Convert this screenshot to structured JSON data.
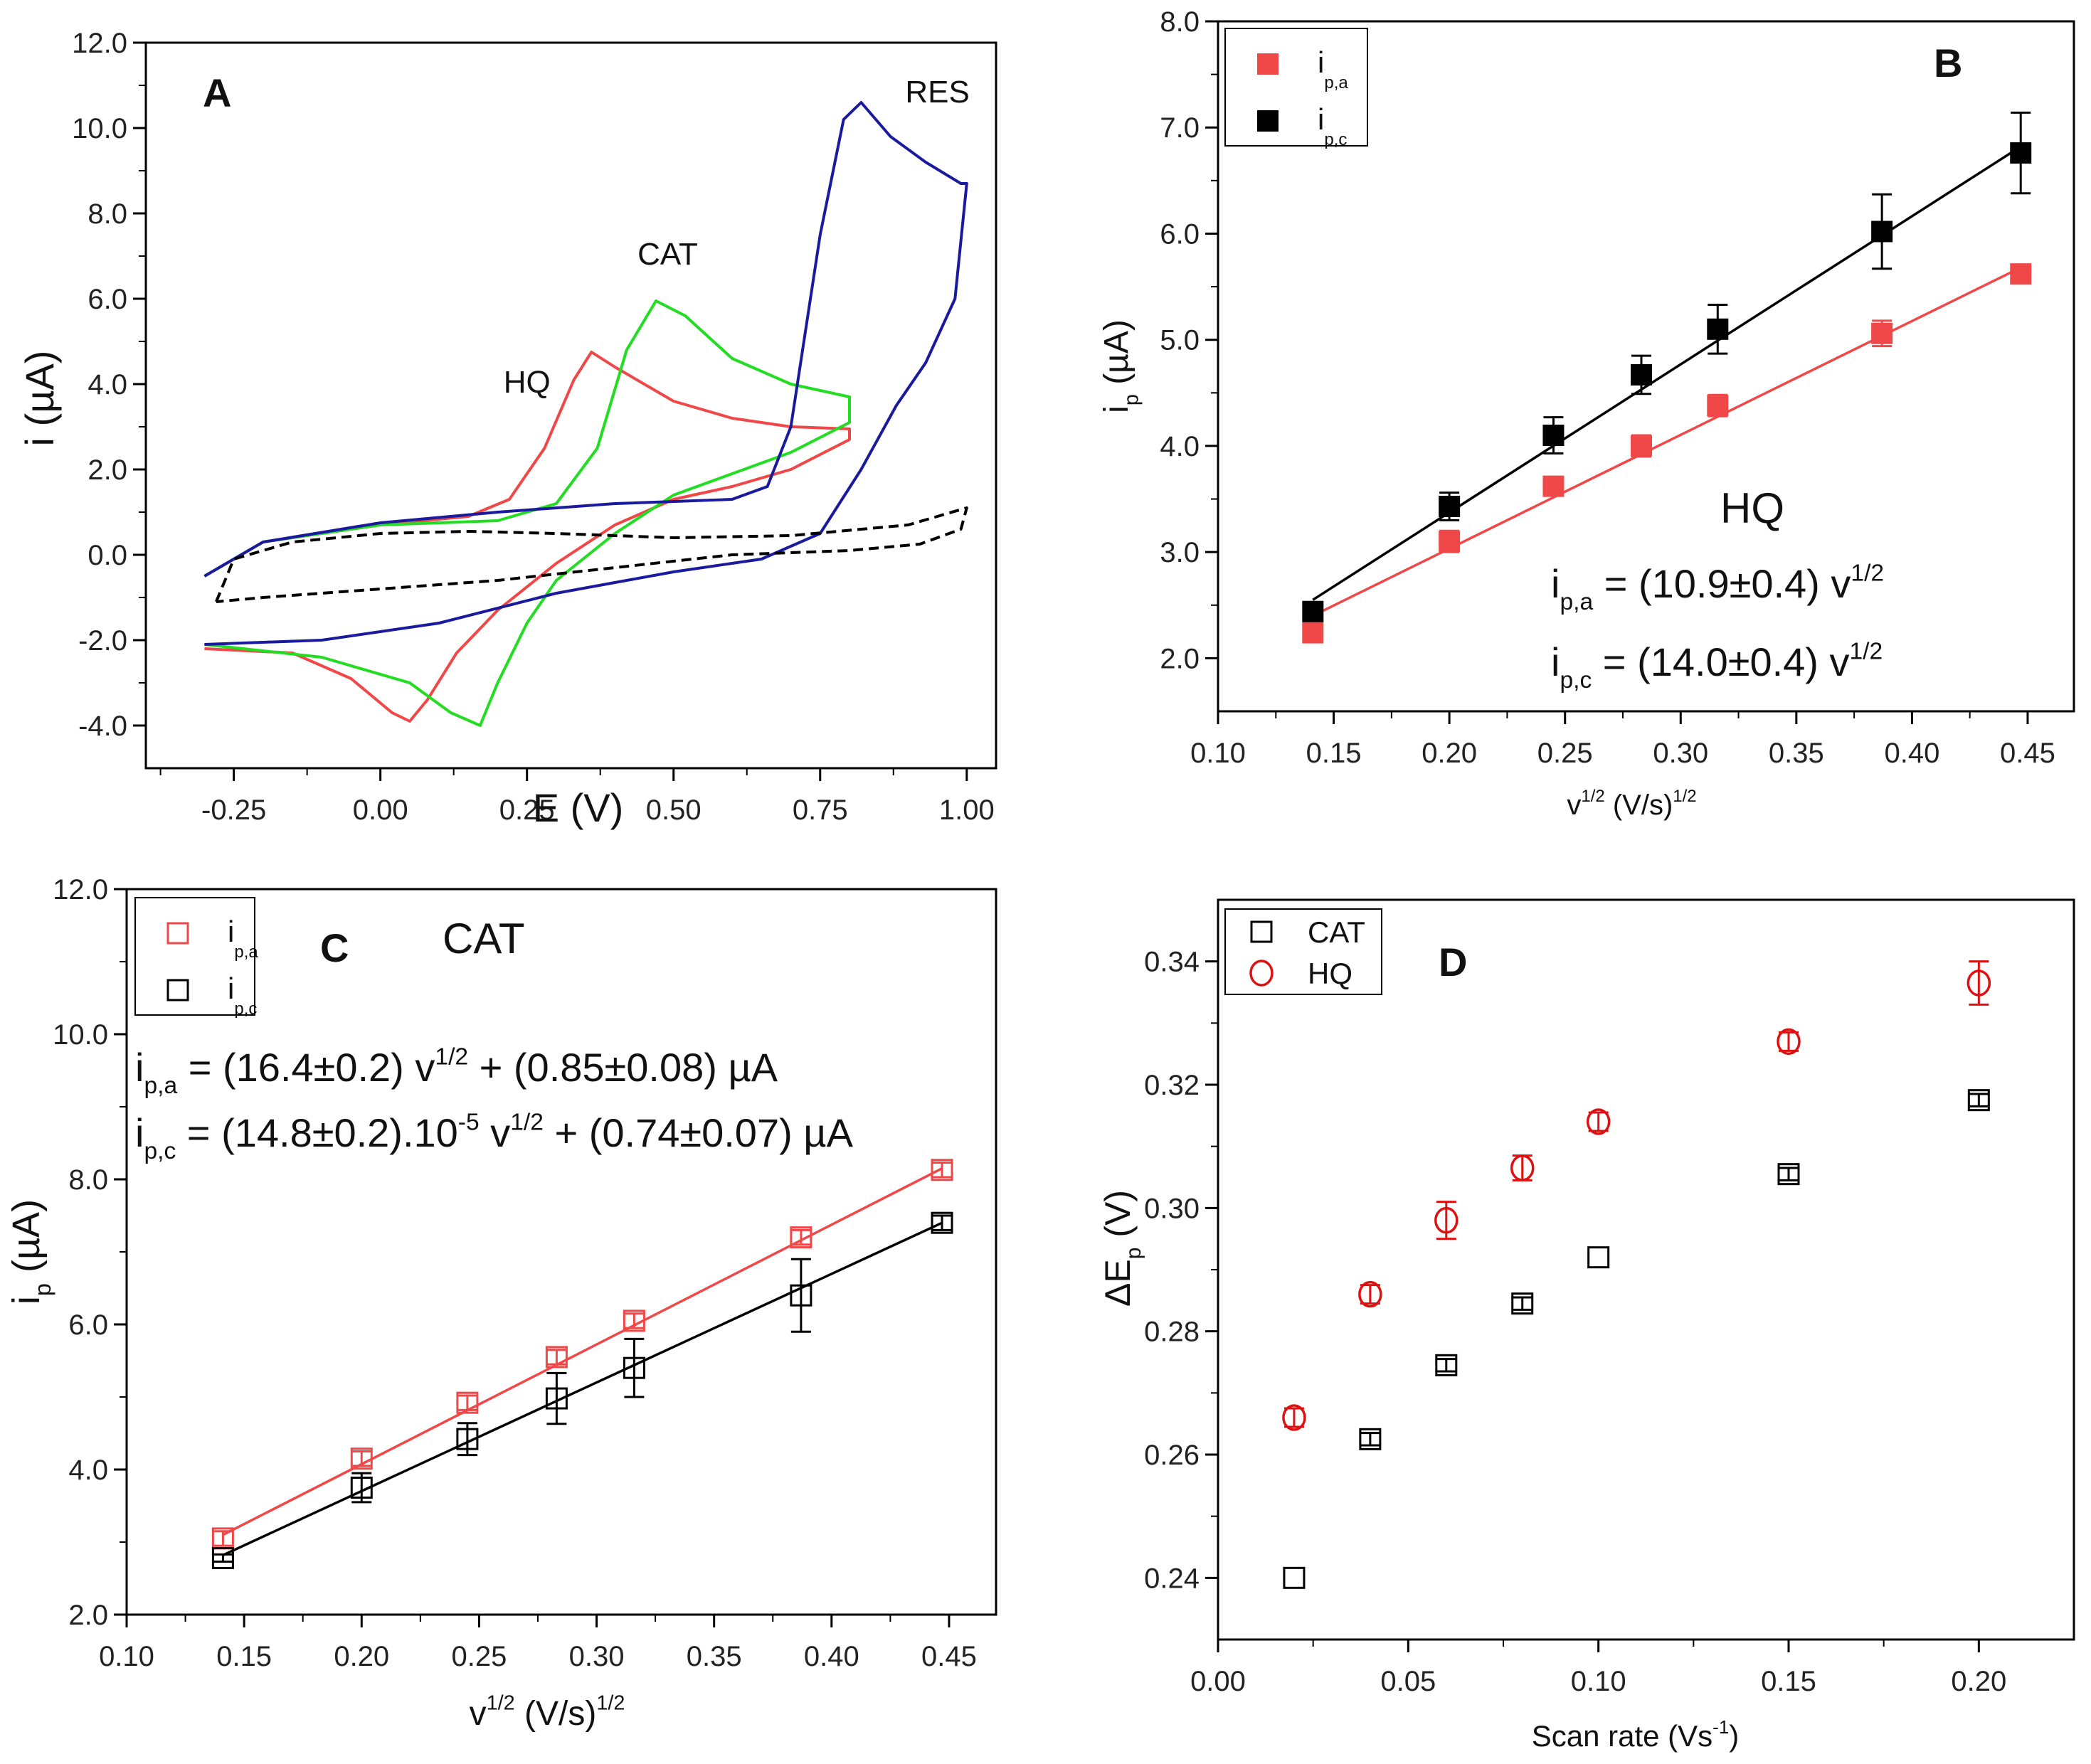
{
  "chart_data": [
    {
      "id": "A",
      "type": "line",
      "panel_label": "A",
      "xlabel": "E (V)",
      "ylabel": "i (µA)",
      "xlim": [
        -0.4,
        1.05
      ],
      "ylim": [
        -5.0,
        12.0
      ],
      "xticks": [
        "-0.25",
        "0.00",
        "0.25",
        "0.50",
        "0.75",
        "1.00"
      ],
      "yticks": [
        "-4.0",
        "-2.0",
        "0.0",
        "2.0",
        "4.0",
        "6.0",
        "8.0",
        "10.0",
        "12.0"
      ],
      "colors": {
        "HQ": "#f04848",
        "CAT": "#22dd22",
        "RES": "#1a1a9e",
        "blank": "#000000"
      },
      "annotations": [
        {
          "text": "RES",
          "x": 0.95,
          "y": 10.6,
          "color": "#1a1a9e"
        },
        {
          "text": "CAT",
          "x": 0.49,
          "y": 6.8,
          "color": "#22dd22"
        },
        {
          "text": "HQ",
          "x": 0.25,
          "y": 3.8,
          "color": "#f04848"
        }
      ],
      "series": [
        {
          "name": "HQ",
          "dashed": false,
          "points": [
            [
              -0.3,
              -0.5
            ],
            [
              -0.2,
              0.3
            ],
            [
              0.0,
              0.7
            ],
            [
              0.15,
              0.9
            ],
            [
              0.22,
              1.3
            ],
            [
              0.28,
              2.5
            ],
            [
              0.33,
              4.1
            ],
            [
              0.36,
              4.75
            ],
            [
              0.4,
              4.4
            ],
            [
              0.5,
              3.6
            ],
            [
              0.6,
              3.2
            ],
            [
              0.7,
              3.0
            ],
            [
              0.8,
              2.95
            ],
            [
              0.8,
              2.7
            ],
            [
              0.7,
              2.0
            ],
            [
              0.6,
              1.6
            ],
            [
              0.5,
              1.3
            ],
            [
              0.4,
              0.7
            ],
            [
              0.3,
              -0.2
            ],
            [
              0.2,
              -1.3
            ],
            [
              0.13,
              -2.3
            ],
            [
              0.08,
              -3.4
            ],
            [
              0.05,
              -3.9
            ],
            [
              0.02,
              -3.7
            ],
            [
              -0.05,
              -2.9
            ],
            [
              -0.15,
              -2.3
            ],
            [
              -0.3,
              -2.2
            ]
          ]
        },
        {
          "name": "CAT",
          "dashed": false,
          "points": [
            [
              -0.3,
              -0.5
            ],
            [
              -0.2,
              0.3
            ],
            [
              0.0,
              0.7
            ],
            [
              0.2,
              0.8
            ],
            [
              0.3,
              1.2
            ],
            [
              0.37,
              2.5
            ],
            [
              0.42,
              4.8
            ],
            [
              0.47,
              5.95
            ],
            [
              0.52,
              5.6
            ],
            [
              0.6,
              4.6
            ],
            [
              0.7,
              4.0
            ],
            [
              0.8,
              3.7
            ],
            [
              0.8,
              3.1
            ],
            [
              0.7,
              2.4
            ],
            [
              0.6,
              1.9
            ],
            [
              0.5,
              1.4
            ],
            [
              0.4,
              0.5
            ],
            [
              0.3,
              -0.6
            ],
            [
              0.25,
              -1.6
            ],
            [
              0.2,
              -3.0
            ],
            [
              0.17,
              -4.0
            ],
            [
              0.12,
              -3.7
            ],
            [
              0.05,
              -3.0
            ],
            [
              -0.1,
              -2.4
            ],
            [
              -0.3,
              -2.1
            ]
          ]
        },
        {
          "name": "RES",
          "dashed": false,
          "points": [
            [
              -0.3,
              -0.5
            ],
            [
              -0.2,
              0.3
            ],
            [
              0.0,
              0.75
            ],
            [
              0.2,
              1.0
            ],
            [
              0.4,
              1.2
            ],
            [
              0.6,
              1.3
            ],
            [
              0.66,
              1.6
            ],
            [
              0.7,
              3.0
            ],
            [
              0.75,
              7.5
            ],
            [
              0.79,
              10.2
            ],
            [
              0.82,
              10.6
            ],
            [
              0.87,
              9.8
            ],
            [
              0.93,
              9.2
            ],
            [
              0.99,
              8.7
            ],
            [
              1.0,
              8.7
            ],
            [
              0.98,
              6.0
            ],
            [
              0.93,
              4.5
            ],
            [
              0.88,
              3.5
            ],
            [
              0.82,
              2.0
            ],
            [
              0.75,
              0.5
            ],
            [
              0.65,
              -0.1
            ],
            [
              0.5,
              -0.4
            ],
            [
              0.3,
              -0.9
            ],
            [
              0.1,
              -1.6
            ],
            [
              -0.1,
              -2.0
            ],
            [
              -0.3,
              -2.1
            ]
          ]
        },
        {
          "name": "blank",
          "dashed": true,
          "points": [
            [
              -0.28,
              -1.1
            ],
            [
              -0.25,
              -0.1
            ],
            [
              -0.15,
              0.3
            ],
            [
              0.0,
              0.5
            ],
            [
              0.15,
              0.55
            ],
            [
              0.3,
              0.5
            ],
            [
              0.5,
              0.4
            ],
            [
              0.7,
              0.45
            ],
            [
              0.9,
              0.7
            ],
            [
              1.0,
              1.1
            ],
            [
              0.99,
              0.6
            ],
            [
              0.92,
              0.25
            ],
            [
              0.8,
              0.1
            ],
            [
              0.6,
              0.0
            ],
            [
              0.4,
              -0.3
            ],
            [
              0.2,
              -0.6
            ],
            [
              0.0,
              -0.8
            ],
            [
              -0.2,
              -1.0
            ],
            [
              -0.28,
              -1.1
            ]
          ]
        }
      ]
    },
    {
      "id": "B",
      "type": "scatter",
      "panel_label": "B",
      "title": "HQ",
      "xlabel_base": "v",
      "xlabel_sup": "1/2",
      "xlabel_units": " (V/s)",
      "xlabel_units_sup": "1/2",
      "ylabel_base": "i",
      "ylabel_sub": "p",
      "ylabel_units": " (µA)",
      "xlim": [
        0.1,
        0.47
      ],
      "ylim": [
        1.5,
        8.0
      ],
      "xticks": [
        "0.10",
        "0.15",
        "0.20",
        "0.25",
        "0.30",
        "0.35",
        "0.40",
        "0.45"
      ],
      "yticks": [
        "2.0",
        "3.0",
        "4.0",
        "5.0",
        "6.0",
        "7.0",
        "8.0"
      ],
      "x": [
        0.141,
        0.2,
        0.245,
        0.283,
        0.316,
        0.387,
        0.447
      ],
      "legend": [
        {
          "base": "i",
          "sub": "p,a",
          "color": "#f04848"
        },
        {
          "base": "i",
          "sub": "p,c",
          "color": "#000000"
        }
      ],
      "series": [
        {
          "name": "ip,a",
          "color": "#f04848",
          "marker": "filled-square",
          "values": [
            2.24,
            3.1,
            3.62,
            4.0,
            4.38,
            5.06,
            5.62
          ],
          "errors": [
            0.08,
            0.1,
            0.07,
            0.1,
            0.1,
            0.12,
            0.08
          ],
          "fit": [
            0.141,
            2.4,
            0.447,
            5.68
          ]
        },
        {
          "name": "ip,c",
          "color": "#000000",
          "marker": "filled-square",
          "values": [
            2.44,
            3.43,
            4.1,
            4.67,
            5.1,
            6.02,
            6.76
          ],
          "errors": [
            0.05,
            0.13,
            0.17,
            0.18,
            0.23,
            0.35,
            0.38
          ],
          "fit": [
            0.141,
            2.55,
            0.447,
            6.82
          ]
        }
      ],
      "equations": [
        {
          "base": "i",
          "sub": "p,a",
          "rest": " = (10.9±0.4) v",
          "sup": "1/2"
        },
        {
          "base": "i",
          "sub": "p,c",
          "rest": " = (14.0±0.4) v",
          "sup": "1/2"
        }
      ]
    },
    {
      "id": "C",
      "type": "scatter",
      "panel_label": "C",
      "title": "CAT",
      "xlabel_base": "v",
      "xlabel_sup": "1/2",
      "xlabel_units": " (V/s)",
      "xlabel_units_sup": "1/2",
      "ylabel_base": "i",
      "ylabel_sub": "p",
      "ylabel_units": " (µA)",
      "xlim": [
        0.1,
        0.47
      ],
      "ylim": [
        2.0,
        12.0
      ],
      "xticks": [
        "0.10",
        "0.15",
        "0.20",
        "0.25",
        "0.30",
        "0.35",
        "0.40",
        "0.45"
      ],
      "yticks": [
        "2.0",
        "4.0",
        "6.0",
        "8.0",
        "10.0",
        "12.0"
      ],
      "x": [
        0.141,
        0.2,
        0.245,
        0.283,
        0.316,
        0.387,
        0.447
      ],
      "legend": [
        {
          "base": "i",
          "sub": "p,a",
          "color": "#f04848"
        },
        {
          "base": "i",
          "sub": "p,c",
          "color": "#000000"
        }
      ],
      "series": [
        {
          "name": "ip,a",
          "color": "#f04848",
          "marker": "open-square",
          "values": [
            3.05,
            4.15,
            4.92,
            5.55,
            6.05,
            7.2,
            8.13
          ],
          "errors": [
            0.1,
            0.1,
            0.1,
            0.1,
            0.1,
            0.1,
            0.1
          ],
          "fit": [
            0.141,
            3.1,
            0.447,
            8.15
          ]
        },
        {
          "name": "ip,c",
          "color": "#000000",
          "marker": "open-square",
          "values": [
            2.78,
            3.75,
            4.42,
            4.98,
            5.4,
            6.4,
            7.4
          ],
          "errors": [
            0.05,
            0.2,
            0.22,
            0.35,
            0.4,
            0.5,
            0.1
          ],
          "fit": [
            0.141,
            2.82,
            0.447,
            7.4
          ]
        }
      ],
      "equations": [
        {
          "base": "i",
          "sub": "p,a",
          "rest": " = (16.4±0.2) v",
          "sup": "1/2",
          "tail": " + (0.85±0.08) µA"
        },
        {
          "base": "i",
          "sub": "p,c",
          "rest": " = (14.8±0.2).10",
          "sup": "-5",
          "rest2": " v",
          "sup2": "1/2",
          "tail": " + (0.74±0.07) µA"
        }
      ]
    },
    {
      "id": "D",
      "type": "scatter",
      "panel_label": "D",
      "xlabel_base": "Scan rate (Vs",
      "xlabel_sup": "-1",
      "xlabel_tail": ")",
      "ylabel_base": "ΔE",
      "ylabel_sub": "p",
      "ylabel_units": " (V)",
      "xlim": [
        0.0,
        0.225
      ],
      "ylim": [
        0.23,
        0.35
      ],
      "xticks": [
        "0.00",
        "0.05",
        "0.10",
        "0.15",
        "0.20"
      ],
      "yticks": [
        "0.24",
        "0.26",
        "0.28",
        "0.30",
        "0.32",
        "0.34"
      ],
      "legend": [
        {
          "label": "CAT",
          "color": "#000000",
          "marker": "open-square"
        },
        {
          "label": "HQ",
          "color": "#dd1111",
          "marker": "open-circle"
        }
      ],
      "series": [
        {
          "name": "CAT",
          "color": "#000000",
          "marker": "open-square",
          "x": [
            0.02,
            0.04,
            0.06,
            0.08,
            0.1,
            0.15,
            0.2
          ],
          "values": [
            0.24,
            0.2625,
            0.2745,
            0.2845,
            0.292,
            0.3055,
            0.3175
          ],
          "errors": [
            0.0,
            0.001,
            0.001,
            0.001,
            0.0,
            0.001,
            0.001
          ]
        },
        {
          "name": "HQ",
          "color": "#dd1111",
          "marker": "open-circle",
          "x": [
            0.02,
            0.04,
            0.06,
            0.08,
            0.1,
            0.15,
            0.2
          ],
          "values": [
            0.266,
            0.286,
            0.298,
            0.3065,
            0.314,
            0.327,
            0.3365
          ],
          "errors": [
            0.0015,
            0.0015,
            0.003,
            0.002,
            0.0015,
            0.0015,
            0.0035
          ]
        }
      ]
    }
  ]
}
